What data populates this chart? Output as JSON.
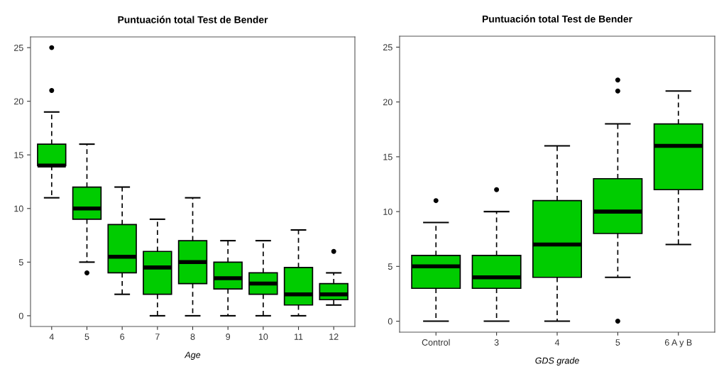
{
  "chart_data": [
    {
      "type": "box",
      "title": "Puntuación total Test de Bender",
      "xlabel": "Age",
      "categories": [
        "4",
        "5",
        "6",
        "7",
        "8",
        "9",
        "10",
        "11",
        "12"
      ],
      "color": "#00cc00",
      "ylim": [
        -1,
        26
      ],
      "yticks": [
        0,
        5,
        10,
        15,
        20,
        25
      ],
      "grid": false,
      "legend": false,
      "boxes": [
        {
          "low": 11,
          "q1": 14,
          "median": 14,
          "q3": 16,
          "high": 19,
          "outliers": [
            21,
            25
          ]
        },
        {
          "low": 5,
          "q1": 9,
          "median": 10,
          "q3": 12,
          "high": 16,
          "outliers": [
            4
          ]
        },
        {
          "low": 2,
          "q1": 4,
          "median": 5.5,
          "q3": 8.5,
          "high": 12
        },
        {
          "low": 0,
          "q1": 2,
          "median": 4.5,
          "q3": 6,
          "high": 9
        },
        {
          "low": 0,
          "q1": 3,
          "median": 5,
          "q3": 7,
          "high": 11
        },
        {
          "low": 0,
          "q1": 2.5,
          "median": 3.5,
          "q3": 5,
          "high": 7
        },
        {
          "low": 0,
          "q1": 2,
          "median": 3,
          "q3": 4,
          "high": 7
        },
        {
          "low": 0,
          "q1": 1,
          "median": 2,
          "q3": 4.5,
          "high": 8
        },
        {
          "low": 1,
          "q1": 1.5,
          "median": 2,
          "q3": 3,
          "high": 4,
          "outliers": [
            6
          ]
        }
      ]
    },
    {
      "type": "box",
      "title": "Puntuación total Test de Bender",
      "xlabel": "GDS grade",
      "categories": [
        "Control",
        "3",
        "4",
        "5",
        "6 A y B"
      ],
      "color": "#00cc00",
      "ylim": [
        -1,
        26
      ],
      "yticks": [
        0,
        5,
        10,
        15,
        20,
        25
      ],
      "grid": false,
      "legend": false,
      "boxes": [
        {
          "low": 0,
          "q1": 3,
          "median": 5,
          "q3": 6,
          "high": 9,
          "outliers": [
            11
          ]
        },
        {
          "low": 0,
          "q1": 3,
          "median": 4,
          "q3": 6,
          "high": 10,
          "outliers": [
            12
          ]
        },
        {
          "low": 0,
          "q1": 4,
          "median": 7,
          "q3": 11,
          "high": 16
        },
        {
          "low": 4,
          "q1": 8,
          "median": 10,
          "q3": 13,
          "high": 18,
          "outliers": [
            0,
            21,
            22
          ]
        },
        {
          "low": 7,
          "q1": 12,
          "median": 16,
          "q3": 18,
          "high": 21
        }
      ]
    }
  ]
}
